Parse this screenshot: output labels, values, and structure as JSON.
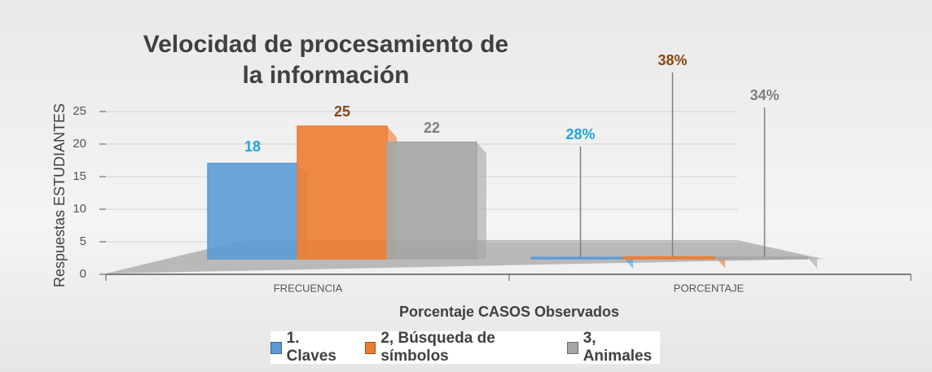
{
  "chart_data": {
    "type": "bar3d",
    "title": "Velocidad de procesamiento de la información",
    "y_label": "Respuestas ESTUDIANTES",
    "x_label": "Porcentaje CASOS Observados",
    "categories": [
      "FRECUENCIA",
      "PORCENTAJE"
    ],
    "series": [
      {
        "name": "1. Claves",
        "color": "#5b9bd5",
        "label_color": "#1ea7dc",
        "values": [
          18,
          0.28
        ],
        "value_labels": [
          "18",
          "28%"
        ]
      },
      {
        "name": "2, Búsqueda de símbolos",
        "color": "#ed7d31",
        "label_color": "#8a4513",
        "values": [
          25,
          0.38
        ],
        "value_labels": [
          "25",
          "38%"
        ]
      },
      {
        "name": "3, Animales",
        "color": "#a5a5a5",
        "label_color": "#7f7f7f",
        "values": [
          22,
          0.34
        ],
        "value_labels": [
          "22",
          "34%"
        ]
      }
    ],
    "ylim": [
      0,
      25
    ],
    "yticks": [
      0,
      5,
      10,
      15,
      20,
      25
    ],
    "grid": true,
    "legend": "bottom"
  }
}
